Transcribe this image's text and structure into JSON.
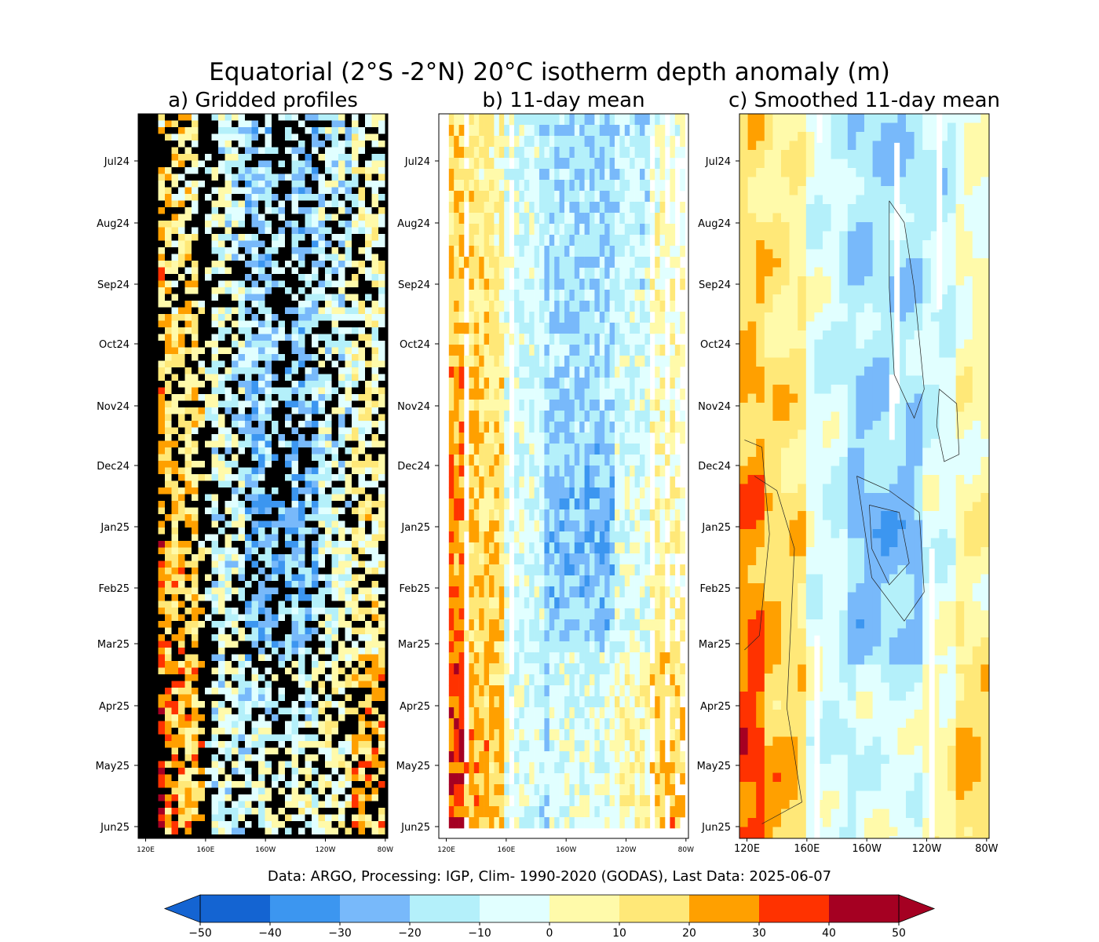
{
  "figure": {
    "title": "Equatorial (2°S -2°N) 20°C isotherm depth anomaly (m)",
    "info_line": "Data: ARGO, Processing: IGP, Clim- 1990-2020 (GODAS), Last Data: 2025-06-07"
  },
  "chart_data": [
    {
      "type": "heatmap",
      "title": "a) Gridded profiles",
      "y_ticks": [
        "Jul24",
        "Aug24",
        "Sep24",
        "Oct24",
        "Nov24",
        "Dec24",
        "Jan25",
        "Feb25",
        "Mar25",
        "Apr25",
        "May25",
        "Jun25"
      ],
      "x_ticks": [
        "120E",
        "160E",
        "160W",
        "120W",
        "80W"
      ],
      "missing_color": "#000000",
      "note_values": "Profile-level anomalies: warm (+10 to +50 m) west of 160E, cool (-10 to -40 m) 160W–100W, especially Dec24–Apr25"
    },
    {
      "type": "heatmap",
      "title": "b) 11-day mean",
      "y_ticks": [
        "Jul24",
        "Aug24",
        "Sep24",
        "Oct24",
        "Nov24",
        "Dec24",
        "Jan25",
        "Feb25",
        "Mar25",
        "Apr25",
        "May25",
        "Jun25"
      ],
      "x_ticks": [
        "120E",
        "160E",
        "160W",
        "120W",
        "80W"
      ],
      "missing_color": "#ffffff"
    },
    {
      "type": "heatmap",
      "title": "c) Smoothed 11-day mean",
      "y_ticks": [
        "Jul24",
        "Aug24",
        "Sep24",
        "Oct24",
        "Nov24",
        "Dec24",
        "Jan25",
        "Feb25",
        "Mar25",
        "Apr25",
        "May25",
        "Jun25"
      ],
      "x_ticks": [
        "120E",
        "160E",
        "160W",
        "120W",
        "80W"
      ],
      "contours": true
    }
  ],
  "colorbar": {
    "levels": [
      -50,
      -40,
      -30,
      -20,
      -10,
      0,
      10,
      20,
      30,
      40,
      50
    ],
    "labels": [
      "−50",
      "−40",
      "−30",
      "−20",
      "−10",
      "0",
      "10",
      "20",
      "30",
      "40",
      "50"
    ],
    "colors": [
      "#1464d2",
      "#3c96f0",
      "#78b9fa",
      "#b4f0fa",
      "#e1ffff",
      "#fffaaa",
      "#ffe878",
      "#ffa000",
      "#ff3200",
      "#a50022"
    ],
    "extend": "both",
    "under_color": "#1464d2",
    "over_color": "#a50022"
  }
}
